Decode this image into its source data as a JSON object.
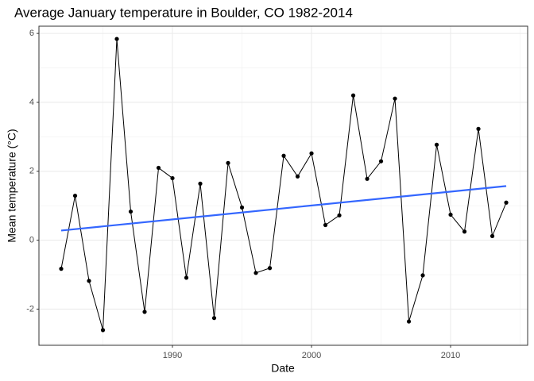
{
  "chart_data": {
    "type": "line",
    "title": "Average January temperature in Boulder, CO 1982-2014",
    "x_label": "Date",
    "y_label": "Mean temperature (°C)",
    "x": [
      1982,
      1983,
      1984,
      1985,
      1986,
      1987,
      1988,
      1989,
      1990,
      1991,
      1992,
      1993,
      1994,
      1995,
      1996,
      1997,
      1998,
      1999,
      2000,
      2001,
      2002,
      2003,
      2004,
      2005,
      2006,
      2007,
      2008,
      2009,
      2010,
      2011,
      2012,
      2013,
      2014
    ],
    "series": [
      {
        "color": "#000000",
        "values": [
          -0.83,
          1.29,
          -1.18,
          -2.61,
          5.84,
          0.83,
          -2.08,
          2.1,
          1.8,
          -1.09,
          1.64,
          -2.26,
          2.24,
          0.95,
          -0.95,
          -0.81,
          2.45,
          1.85,
          2.52,
          0.44,
          0.72,
          4.2,
          1.78,
          2.29,
          4.11,
          -2.36,
          -1.02,
          2.77,
          0.74,
          0.25,
          3.23,
          0.12,
          1.09
        ]
      }
    ],
    "trend": {
      "x": [
        1982,
        2014
      ],
      "values": [
        0.28,
        1.57
      ],
      "color": "#3366ff"
    },
    "xlim": [
      1980.4,
      2015.54
    ],
    "ylim": [
      -3.05,
      6.21
    ],
    "xticks": [
      1990,
      2000,
      2010
    ],
    "yticks": [
      -2,
      0,
      2,
      4,
      6
    ],
    "x_minor_ticks": [
      1985,
      1995,
      2005,
      2015
    ],
    "y_minor_ticks": [
      -3,
      -1,
      1,
      3,
      5
    ],
    "grid": true
  }
}
